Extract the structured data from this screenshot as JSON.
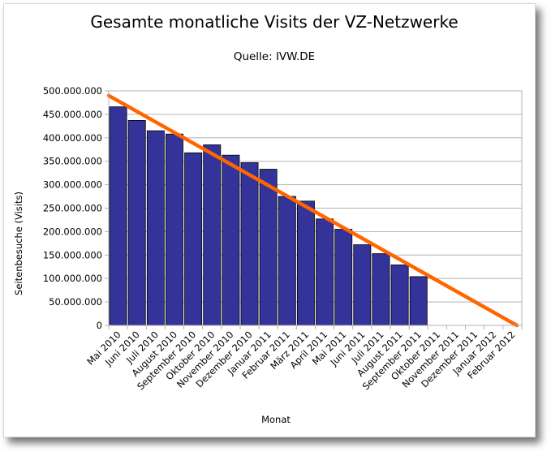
{
  "chart_data": {
    "type": "bar",
    "title": "Gesamte monatliche Visits der VZ-Netzwerke",
    "subtitle": "Quelle: IVW.DE",
    "xlabel": "Monat",
    "ylabel": "Seitenbesuche (Visits)",
    "ylim": [
      0,
      500000000
    ],
    "ytick_step": 50000000,
    "ytick_labels": [
      "0",
      "50.000.000",
      "100.000.000",
      "150.000.000",
      "200.000.000",
      "250.000.000",
      "300.000.000",
      "350.000.000",
      "400.000.000",
      "450.000.000",
      "500.000.000"
    ],
    "grid": true,
    "categories": [
      "Mai 2010",
      "Juni 2010",
      "Juli 2010",
      "August 2010",
      "September 2010",
      "Oktober 2010",
      "November 2010",
      "Dezember 2010",
      "Januar 2011",
      "Februar 2011",
      "März 2011",
      "April 2011",
      "Mai 2011",
      "Juni 2011",
      "Juli 2011",
      "August 2011",
      "September 2011",
      "Oktober 2011",
      "November 2011",
      "Dezember 2011",
      "Januar 2012",
      "Februar 2012"
    ],
    "values": [
      466000000,
      437000000,
      415000000,
      408000000,
      368000000,
      385000000,
      363000000,
      347000000,
      333000000,
      275000000,
      265000000,
      227000000,
      205000000,
      172000000,
      153000000,
      129000000,
      104000000,
      null,
      null,
      null,
      null,
      null
    ],
    "bar_color": "#33339a",
    "trendline": {
      "start_value": 490000000,
      "end_value": 0,
      "color": "#ff6600"
    }
  }
}
